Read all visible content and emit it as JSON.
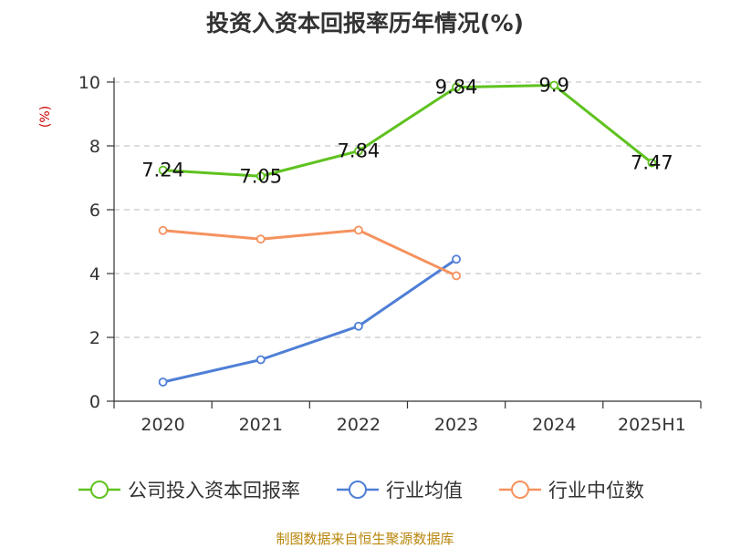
{
  "chart_data": {
    "type": "line",
    "title": "投资入资本回报率历年情况(%)",
    "ylabel": "(%)",
    "categories": [
      "2020",
      "2021",
      "2022",
      "2023",
      "2024",
      "2025H1"
    ],
    "yticks": [
      "0",
      "2",
      "4",
      "6",
      "8",
      "10"
    ],
    "ylim": [
      0,
      10
    ],
    "grid": "horizontal-dashed",
    "legend_position": "bottom",
    "series": [
      {
        "name": "公司投入资本回报率",
        "color": "#5fc21f",
        "values": [
          7.24,
          7.05,
          7.84,
          9.84,
          9.9,
          7.47
        ],
        "labels": [
          "7.24",
          "7.05",
          "7.84",
          "9.84",
          "9.9",
          "7.47"
        ]
      },
      {
        "name": "行业均值",
        "color": "#4f7fd6",
        "values": [
          0.6,
          1.3,
          2.35,
          4.45,
          null,
          null
        ]
      },
      {
        "name": "行业中位数",
        "color": "#f5925e",
        "values": [
          5.35,
          5.08,
          5.36,
          3.93,
          null,
          null
        ]
      }
    ]
  },
  "footer": {
    "source": "制图数据来自恒生聚源数据库"
  }
}
